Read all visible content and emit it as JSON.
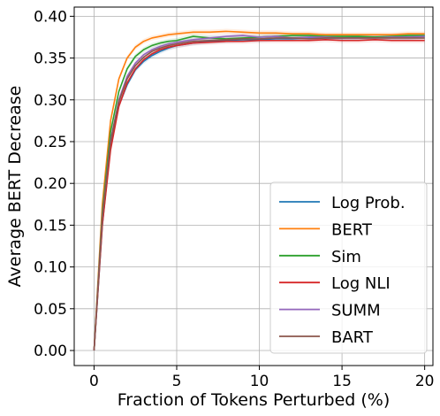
{
  "chart_data": {
    "type": "line",
    "xlabel": "Fraction of Tokens Perturbed (%)",
    "ylabel": "Average BERT Decrease",
    "xlim": [
      -1.2,
      20.5
    ],
    "ylim": [
      -0.018,
      0.411
    ],
    "xticks": [
      0,
      5,
      10,
      15,
      20
    ],
    "yticks": [
      0.0,
      0.05,
      0.1,
      0.15,
      0.2,
      0.25,
      0.3,
      0.35,
      0.4
    ],
    "xtick_labels": [
      "0",
      "5",
      "10",
      "15",
      "20"
    ],
    "ytick_labels": [
      "0.00",
      "0.05",
      "0.10",
      "0.15",
      "0.20",
      "0.25",
      "0.30",
      "0.35",
      "0.40"
    ],
    "grid": true,
    "legend_position": "lower-right",
    "x": [
      0,
      0.5,
      1,
      1.5,
      2,
      2.5,
      3,
      3.5,
      4,
      4.5,
      5,
      6,
      7,
      8,
      9,
      10,
      11,
      12,
      13,
      14,
      15,
      16,
      17,
      18,
      19,
      20
    ],
    "series": [
      {
        "name": "Log Prob.",
        "color": "#1f77b4",
        "values": [
          0,
          0.15,
          0.245,
          0.293,
          0.318,
          0.336,
          0.346,
          0.353,
          0.358,
          0.362,
          0.365,
          0.368,
          0.37,
          0.371,
          0.372,
          0.372,
          0.373,
          0.373,
          0.374,
          0.374,
          0.374,
          0.375,
          0.375,
          0.375,
          0.375,
          0.376
        ]
      },
      {
        "name": "BERT",
        "color": "#ff7f0e",
        "values": [
          0,
          0.175,
          0.275,
          0.325,
          0.35,
          0.363,
          0.37,
          0.374,
          0.376,
          0.378,
          0.379,
          0.381,
          0.381,
          0.382,
          0.381,
          0.38,
          0.38,
          0.379,
          0.379,
          0.378,
          0.378,
          0.378,
          0.378,
          0.378,
          0.379,
          0.379
        ]
      },
      {
        "name": "Sim",
        "color": "#2ca02c",
        "values": [
          0,
          0.165,
          0.262,
          0.31,
          0.337,
          0.352,
          0.36,
          0.365,
          0.368,
          0.37,
          0.371,
          0.376,
          0.374,
          0.373,
          0.374,
          0.375,
          0.376,
          0.377,
          0.377,
          0.376,
          0.376,
          0.376,
          0.375,
          0.376,
          0.377,
          0.377
        ]
      },
      {
        "name": "Log NLI",
        "color": "#d62728",
        "values": [
          0,
          0.15,
          0.24,
          0.292,
          0.32,
          0.337,
          0.348,
          0.355,
          0.36,
          0.363,
          0.365,
          0.368,
          0.369,
          0.37,
          0.37,
          0.371,
          0.371,
          0.371,
          0.371,
          0.372,
          0.371,
          0.371,
          0.372,
          0.371,
          0.371,
          0.371
        ]
      },
      {
        "name": "SUMM",
        "color": "#9467bd",
        "values": [
          0,
          0.16,
          0.252,
          0.3,
          0.328,
          0.344,
          0.354,
          0.36,
          0.364,
          0.367,
          0.369,
          0.372,
          0.374,
          0.376,
          0.377,
          0.375,
          0.376,
          0.374,
          0.375,
          0.375,
          0.374,
          0.374,
          0.374,
          0.375,
          0.375,
          0.376
        ]
      },
      {
        "name": "BART",
        "color": "#8c564b",
        "values": [
          0,
          0.158,
          0.25,
          0.298,
          0.325,
          0.341,
          0.351,
          0.358,
          0.362,
          0.365,
          0.367,
          0.37,
          0.371,
          0.372,
          0.373,
          0.373,
          0.374,
          0.374,
          0.373,
          0.374,
          0.374,
          0.374,
          0.374,
          0.374,
          0.374,
          0.374
        ]
      }
    ]
  }
}
